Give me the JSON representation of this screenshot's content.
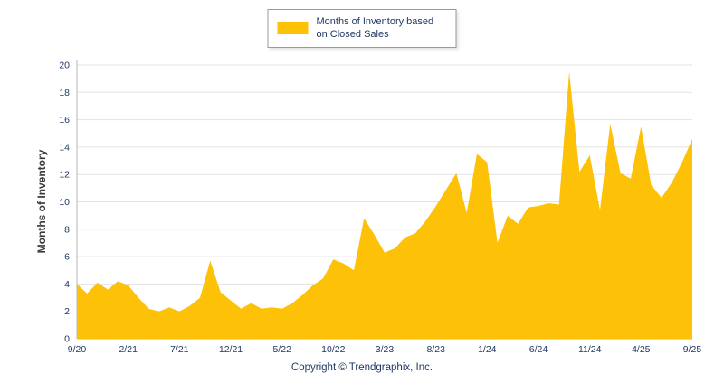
{
  "legend": {
    "label": "Months of Inventory based on Closed Sales"
  },
  "footer": {
    "copyright": "Copyright © Trendgraphix, Inc."
  },
  "colors": {
    "area": "#FDC107",
    "tick_text": "#1F3864",
    "axis_title_text": "#3A3A3A",
    "grid": "#E3E3E3",
    "axis": "#B5B5B5",
    "legend_border": "#9A9A9A"
  },
  "chart_data": {
    "type": "area",
    "title": "Months of Inventory based on Closed Sales",
    "xlabel": "",
    "ylabel": "Months of Inventory",
    "ylim": [
      0,
      20
    ],
    "ytick_step": 2,
    "xtick_every": 5,
    "grid": "horizontal",
    "legend_position": "top-center",
    "x": [
      "9/20",
      "10/20",
      "11/20",
      "12/20",
      "1/21",
      "2/21",
      "3/21",
      "4/21",
      "5/21",
      "6/21",
      "7/21",
      "8/21",
      "9/21",
      "10/21",
      "11/21",
      "12/21",
      "1/22",
      "2/22",
      "3/22",
      "4/22",
      "5/22",
      "6/22",
      "7/22",
      "8/22",
      "9/22",
      "10/22",
      "11/22",
      "12/22",
      "1/23",
      "2/23",
      "3/23",
      "4/23",
      "5/23",
      "6/23",
      "7/23",
      "8/23",
      "9/23",
      "10/23",
      "11/23",
      "12/23",
      "1/24",
      "2/24",
      "3/24",
      "4/24",
      "5/24",
      "6/24",
      "7/24",
      "8/24",
      "9/24",
      "10/24",
      "11/24",
      "12/24",
      "1/25",
      "2/25",
      "3/25",
      "4/25",
      "5/25",
      "6/25",
      "7/25",
      "8/25",
      "9/25"
    ],
    "values": [
      4.0,
      3.3,
      4.1,
      3.6,
      4.2,
      3.9,
      3.0,
      2.2,
      2.0,
      2.3,
      2.0,
      2.4,
      3.0,
      5.7,
      3.4,
      2.8,
      2.2,
      2.6,
      2.2,
      2.3,
      2.2,
      2.6,
      3.2,
      3.9,
      4.4,
      5.8,
      5.5,
      5.0,
      8.8,
      7.6,
      6.3,
      6.6,
      7.4,
      7.7,
      8.6,
      9.7,
      10.9,
      12.1,
      9.2,
      13.5,
      12.9,
      7.0,
      9.0,
      8.4,
      9.6,
      9.7,
      9.9,
      9.8,
      19.5,
      12.2,
      13.4,
      9.4,
      15.7,
      12.1,
      11.7,
      15.5,
      11.2,
      10.3,
      11.4,
      12.9,
      14.6
    ],
    "x_tick_labels": [
      "9/20",
      "2/21",
      "7/21",
      "12/21",
      "5/22",
      "10/22",
      "3/23",
      "8/23",
      "1/24",
      "6/24",
      "11/24",
      "4/25",
      "9/25"
    ]
  }
}
